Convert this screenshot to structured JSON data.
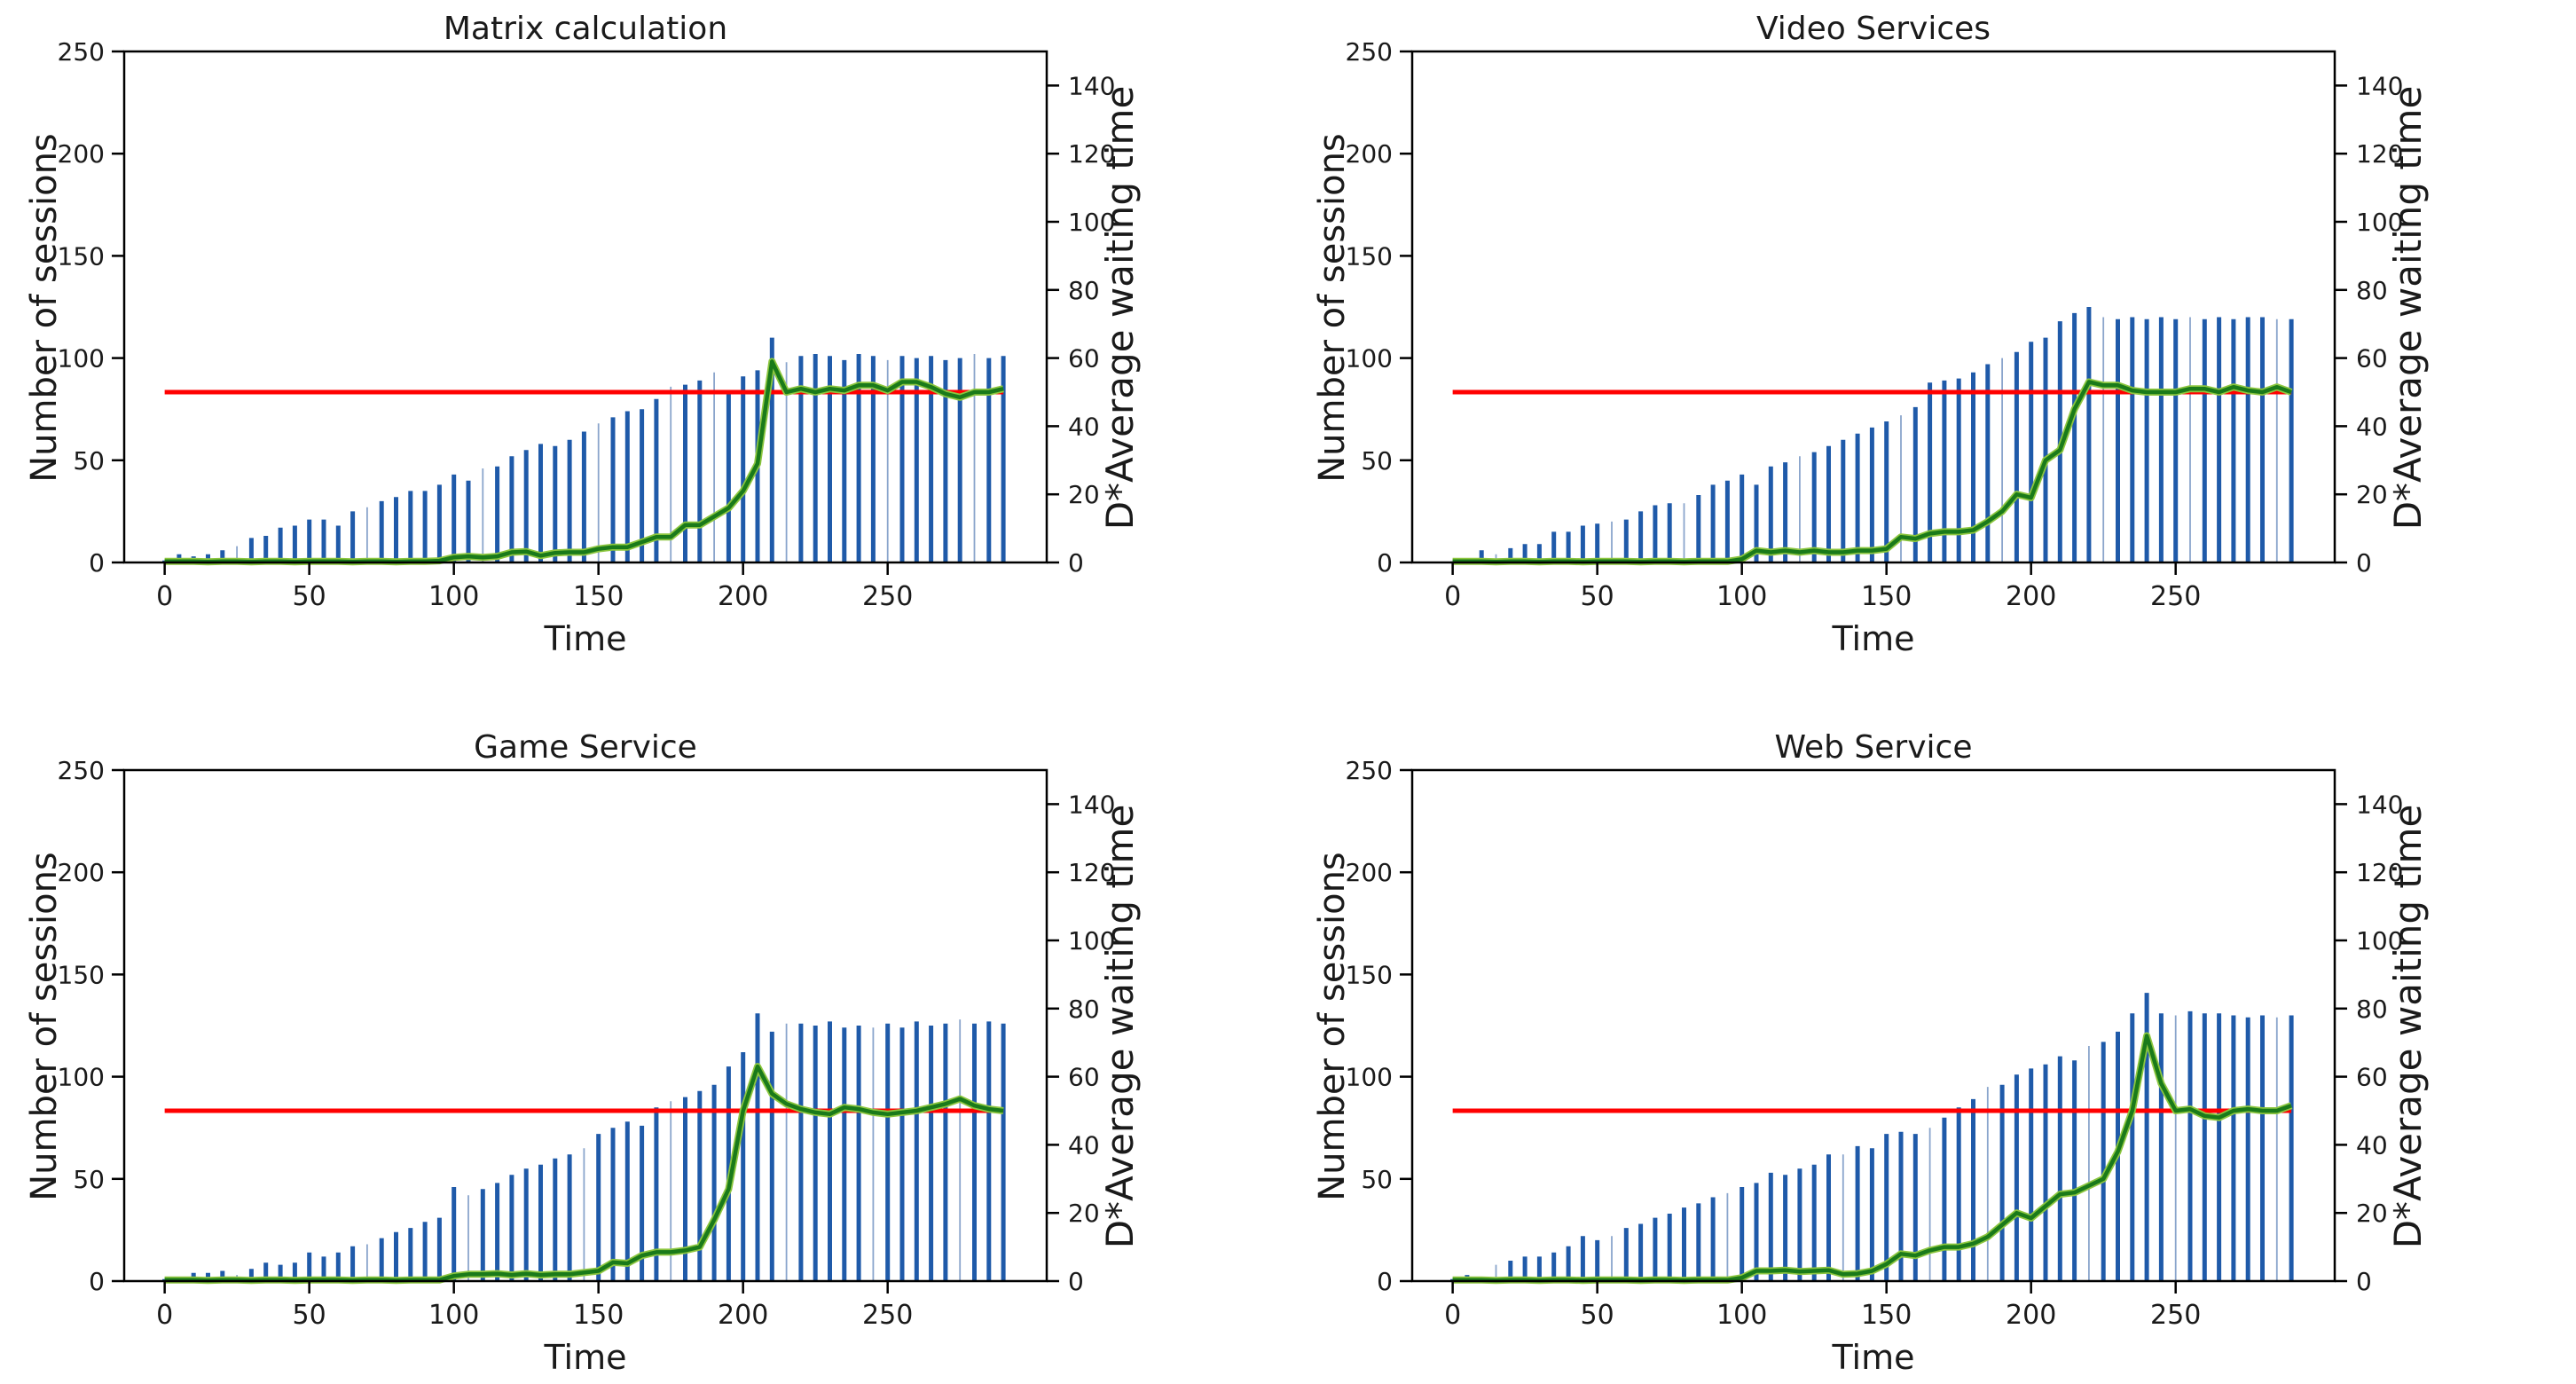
{
  "figure": {
    "background": "#ffffff"
  },
  "chart_data": {
    "type": "bar+line",
    "x_label": "Time",
    "y_left_label": "Number of sessions",
    "y_right_label": "D*Average waiting time",
    "x_ticks": [
      0,
      50,
      100,
      150,
      200,
      250
    ],
    "y_left_ticks": [
      0,
      50,
      100,
      150,
      200,
      250
    ],
    "y_right_ticks": [
      0,
      20,
      40,
      60,
      80,
      100,
      120,
      140
    ],
    "x_range": [
      -14,
      305
    ],
    "y_left_range": [
      0,
      250
    ],
    "y_right_range": [
      0,
      150
    ],
    "legend": "none",
    "grid": false,
    "threshold_right_axis": 50,
    "colors": {
      "bar": "#1f5aa9",
      "bar_thin": "#8aa5cc",
      "waiting_line": "#1a7a1a",
      "waiting_line_halo": "#8cc63f",
      "threshold_line": "#ff0000",
      "spine": "#000000"
    },
    "times": [
      0,
      5,
      10,
      15,
      20,
      25,
      30,
      35,
      40,
      45,
      50,
      55,
      60,
      65,
      70,
      75,
      80,
      85,
      90,
      95,
      100,
      105,
      110,
      115,
      120,
      125,
      130,
      135,
      140,
      145,
      150,
      155,
      160,
      165,
      170,
      175,
      180,
      185,
      190,
      195,
      200,
      205,
      210,
      215,
      220,
      225,
      230,
      235,
      240,
      245,
      250,
      255,
      260,
      265,
      270,
      275,
      280,
      285,
      290
    ],
    "charts": [
      {
        "title": "Matrix calculation",
        "sessions_bars": [
          1,
          4,
          3,
          4,
          6,
          8,
          12,
          13,
          17,
          18,
          21,
          21,
          18,
          25,
          27,
          30,
          32,
          35,
          35,
          38,
          43,
          40,
          46,
          47,
          52,
          55,
          58,
          57,
          60,
          64,
          68,
          71,
          74,
          75,
          80,
          86,
          87,
          89,
          93,
          83,
          91,
          94,
          110,
          98,
          101,
          102,
          101,
          99,
          102,
          101,
          99,
          101,
          100,
          101,
          99,
          100,
          102,
          100,
          101
        ],
        "waiting_time_line": [
          0.3,
          0.3,
          0.3,
          0.2,
          0.3,
          0.3,
          0.2,
          0.3,
          0.3,
          0.2,
          0.3,
          0.3,
          0.3,
          0.2,
          0.3,
          0.3,
          0.2,
          0.3,
          0.3,
          0.5,
          1.5,
          1.8,
          1.5,
          1.8,
          3,
          3.2,
          2,
          2.8,
          3,
          3,
          4,
          4.5,
          4.5,
          6,
          7.5,
          7.5,
          11,
          11,
          13.5,
          16,
          21,
          29,
          59,
          50,
          51,
          50,
          51,
          50.5,
          52,
          52,
          50.5,
          53,
          53,
          51.5,
          49.5,
          48.5,
          50,
          50,
          51
        ],
        "thin_bar_times": [
          25,
          70,
          110,
          150,
          175,
          190,
          215,
          250,
          280
        ]
      },
      {
        "title": "Video Services",
        "sessions_bars": [
          0.5,
          1.5,
          6,
          4,
          7,
          9,
          9,
          15,
          15,
          18,
          19,
          20,
          21,
          25,
          28,
          29,
          29,
          33,
          38,
          40,
          43,
          38,
          47,
          49,
          52,
          54,
          57,
          60,
          63,
          66,
          69,
          72,
          76,
          88,
          89,
          90,
          93,
          97,
          100,
          103,
          108,
          110,
          118,
          122,
          125,
          120,
          119,
          120,
          119,
          120,
          119,
          120,
          119,
          120,
          119,
          120,
          120,
          119,
          119
        ],
        "waiting_time_line": [
          0.3,
          0.3,
          0.3,
          0.2,
          0.3,
          0.3,
          0.2,
          0.3,
          0.3,
          0.2,
          0.3,
          0.3,
          0.3,
          0.2,
          0.3,
          0.3,
          0.2,
          0.3,
          0.3,
          0.3,
          1,
          3.5,
          3,
          3.5,
          3,
          3.5,
          3,
          3,
          3.5,
          3.5,
          4,
          7.5,
          7,
          8.5,
          9,
          9,
          9.5,
          12,
          15,
          20,
          19,
          30,
          33,
          45,
          53,
          52,
          52,
          50.5,
          50,
          50,
          50,
          51,
          51,
          50,
          51.5,
          50.5,
          50,
          51.5,
          50
        ],
        "thin_bar_times": [
          15,
          55,
          80,
          120,
          155,
          190,
          225,
          255,
          285
        ]
      },
      {
        "title": "Game Service",
        "sessions_bars": [
          1,
          2,
          4,
          4,
          5,
          3,
          6,
          9,
          8,
          9,
          14,
          12,
          14,
          17,
          18,
          21,
          24,
          26,
          29,
          31,
          46,
          42,
          45,
          48,
          52,
          55,
          57,
          60,
          62,
          65,
          72,
          75,
          78,
          76,
          85,
          88,
          90,
          93,
          96,
          105,
          112,
          131,
          122,
          126,
          126,
          125,
          127,
          124,
          125,
          124,
          126,
          124,
          127,
          125,
          126,
          128,
          126,
          127,
          126
        ],
        "waiting_time_line": [
          0.3,
          0.3,
          0.3,
          0.2,
          0.3,
          0.3,
          0.2,
          0.3,
          0.3,
          0.2,
          0.3,
          0.3,
          0.3,
          0.2,
          0.3,
          0.3,
          0.2,
          0.3,
          0.3,
          0.3,
          1.5,
          2,
          2,
          2.2,
          1.8,
          2.2,
          1.8,
          2,
          2,
          2.5,
          3,
          5.5,
          5.2,
          7.5,
          8.5,
          8.5,
          9,
          10,
          18,
          27,
          50,
          63,
          55,
          52,
          50.5,
          49.5,
          49,
          51,
          50.5,
          49.5,
          49,
          49.5,
          50,
          51,
          52,
          53.5,
          51.5,
          50.5,
          50
        ],
        "thin_bar_times": [
          25,
          70,
          105,
          145,
          175,
          215,
          245,
          275
        ]
      },
      {
        "title": "Web Service",
        "sessions_bars": [
          1,
          3,
          2,
          8,
          10,
          12,
          12,
          14,
          17,
          22,
          20,
          22,
          26,
          28,
          31,
          33,
          36,
          38,
          41,
          43,
          46,
          48,
          53,
          52,
          55,
          57,
          62,
          62,
          66,
          65,
          72,
          73,
          72,
          75,
          80,
          85,
          89,
          95,
          96,
          101,
          104,
          106,
          110,
          108,
          115,
          117,
          122,
          131,
          141,
          131,
          130,
          132,
          131,
          131,
          130,
          129,
          130,
          129,
          130
        ],
        "waiting_time_line": [
          0.3,
          0.3,
          0.3,
          0.2,
          0.3,
          0.3,
          0.2,
          0.3,
          0.3,
          0.2,
          0.3,
          0.3,
          0.3,
          0.2,
          0.3,
          0.3,
          0.2,
          0.3,
          0.3,
          0.3,
          1,
          3,
          3,
          3.2,
          2.8,
          3,
          3.2,
          2,
          2.2,
          3,
          5,
          8,
          7.5,
          9,
          10,
          10,
          11,
          13,
          16.5,
          20,
          18.5,
          22,
          25.5,
          26,
          28,
          30,
          38,
          50,
          72,
          58,
          50,
          50.5,
          48.5,
          48,
          50,
          50.5,
          50,
          50,
          51.5
        ],
        "thin_bar_times": [
          15,
          55,
          95,
          135,
          165,
          185,
          220,
          250,
          285
        ]
      }
    ]
  }
}
